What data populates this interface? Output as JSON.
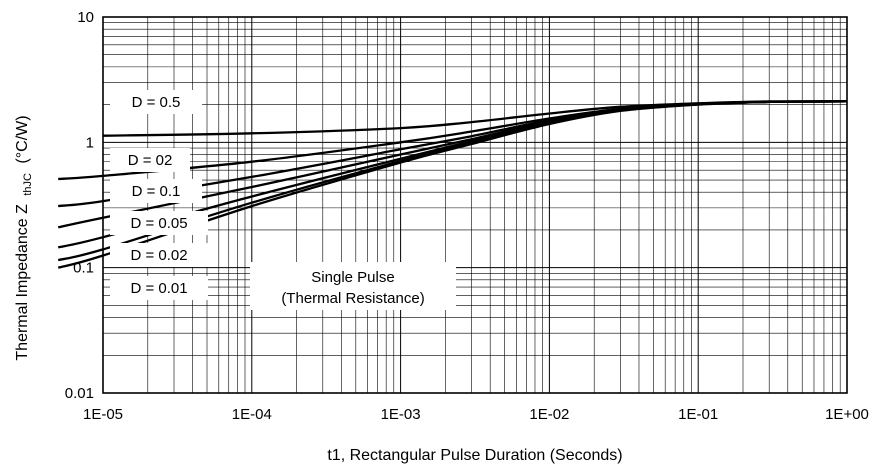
{
  "chart_data": {
    "type": "line",
    "xscale": "log",
    "yscale": "log",
    "xlim": [
      1e-05,
      1
    ],
    "ylim": [
      0.01,
      10
    ],
    "grid": true,
    "xlabel": "t1, Rectangular Pulse Duration (Seconds)",
    "ylabel": "Thermal Impedance Z",
    "ylabel_sub": "thJC",
    "ylabel_unit": "(°C/W)",
    "xticks": [
      {
        "value": 1e-05,
        "label": "1E-05"
      },
      {
        "value": 0.0001,
        "label": "1E-04"
      },
      {
        "value": 0.001,
        "label": "1E-03"
      },
      {
        "value": 0.01,
        "label": "1E-02"
      },
      {
        "value": 0.1,
        "label": "1E-01"
      },
      {
        "value": 1,
        "label": "1E+00"
      }
    ],
    "yticks": [
      {
        "value": 10,
        "label": "10"
      },
      {
        "value": 1,
        "label": "1"
      },
      {
        "value": 0.1,
        "label": "0.1"
      },
      {
        "value": 0.01,
        "label": "0.01"
      }
    ],
    "series": [
      {
        "name": "D = 0.5",
        "x": [
          1e-05,
          0.0001,
          0.001,
          0.003,
          0.01,
          0.03,
          0.1,
          0.3,
          1
        ],
        "y": [
          1.13,
          1.18,
          1.3,
          1.45,
          1.7,
          1.92,
          2.05,
          2.12,
          2.12
        ]
      },
      {
        "name": "D = 02",
        "x": [
          5e-06,
          1e-05,
          0.0001,
          0.001,
          0.003,
          0.01,
          0.03,
          0.1,
          0.3,
          1
        ],
        "y": [
          0.51,
          0.54,
          0.7,
          1.0,
          1.22,
          1.55,
          1.85,
          2.02,
          2.1,
          2.12
        ]
      },
      {
        "name": "D = 0.1",
        "x": [
          5e-06,
          1e-05,
          0.0001,
          0.001,
          0.003,
          0.01,
          0.03,
          0.1,
          0.3,
          1
        ],
        "y": [
          0.31,
          0.34,
          0.53,
          0.88,
          1.12,
          1.5,
          1.83,
          2.02,
          2.1,
          2.12
        ]
      },
      {
        "name": "D = 0.05",
        "x": [
          5e-06,
          1e-05,
          0.0001,
          0.001,
          0.003,
          0.01,
          0.03,
          0.1,
          0.3,
          1
        ],
        "y": [
          0.21,
          0.25,
          0.44,
          0.8,
          1.06,
          1.47,
          1.82,
          2.02,
          2.1,
          2.12
        ]
      },
      {
        "name": "D = 0.02",
        "x": [
          5e-06,
          1e-05,
          0.0001,
          0.001,
          0.003,
          0.01,
          0.03,
          0.1,
          0.3,
          1
        ],
        "y": [
          0.145,
          0.175,
          0.37,
          0.74,
          1.02,
          1.44,
          1.8,
          2.01,
          2.1,
          2.12
        ]
      },
      {
        "name": "D = 0.01",
        "x": [
          5e-06,
          1e-05,
          0.0001,
          0.001,
          0.003,
          0.01,
          0.03,
          0.1,
          0.3,
          1
        ],
        "y": [
          0.115,
          0.14,
          0.33,
          0.71,
          0.99,
          1.42,
          1.79,
          2.01,
          2.1,
          2.12
        ]
      },
      {
        "name": "Single Pulse (Thermal Resistance)",
        "x": [
          5e-06,
          1e-05,
          0.0001,
          0.001,
          0.003,
          0.01,
          0.03,
          0.1,
          0.3,
          1
        ],
        "y": [
          0.1,
          0.125,
          0.31,
          0.69,
          0.97,
          1.4,
          1.78,
          2.0,
          2.1,
          2.12
        ]
      }
    ],
    "annotations": [
      {
        "id": "d05",
        "lines": [
          "D = 0.5"
        ]
      },
      {
        "id": "d02",
        "lines": [
          "D = 02"
        ]
      },
      {
        "id": "d01",
        "lines": [
          "D = 0.1"
        ]
      },
      {
        "id": "d005",
        "lines": [
          "D = 0.05"
        ]
      },
      {
        "id": "d002",
        "lines": [
          "D = 0.02"
        ]
      },
      {
        "id": "d001",
        "lines": [
          "D = 0.01"
        ]
      },
      {
        "id": "single",
        "lines": [
          "Single Pulse",
          "(Thermal Resistance)"
        ]
      }
    ]
  }
}
